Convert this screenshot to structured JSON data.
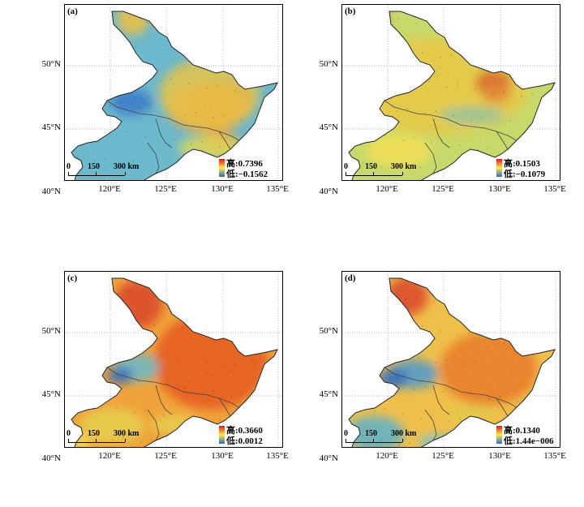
{
  "panels": [
    {
      "label": "(a)",
      "high": "高:0.7396",
      "low": "低:−0.1562",
      "scheme": "a"
    },
    {
      "label": "(b)",
      "high": "高:0.1503",
      "low": "低:−0.1079",
      "scheme": "b"
    },
    {
      "label": "(c)",
      "high": "高:0.3660",
      "low": "低:0.0012",
      "scheme": "c"
    },
    {
      "label": "(d)",
      "high": "高:0.1340",
      "low": "低:1.44e−006",
      "scheme": "d"
    }
  ],
  "lat_ticks": [
    "50°N",
    "45°N",
    "40°N"
  ],
  "lon_ticks": [
    "120°E",
    "125°E",
    "130°E",
    "135°E"
  ],
  "scale_bar": {
    "t0": "0",
    "t1": "150",
    "t2": "300 km"
  },
  "colors": {
    "high": "#d7191c",
    "mid": "#ffe94a",
    "low": "#2b6cc4"
  }
}
